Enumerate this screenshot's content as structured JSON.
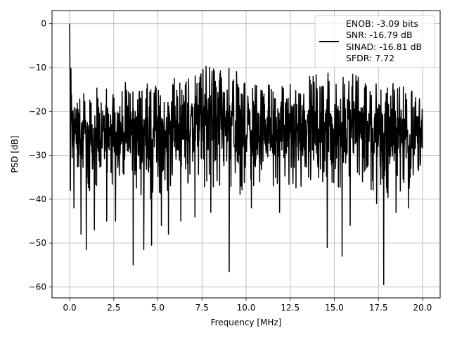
{
  "chart_data": {
    "type": "line",
    "title": "",
    "xlabel": "Frequency [MHz]",
    "ylabel": "PSD [dB]",
    "xlim": [
      -1.0,
      21.0
    ],
    "ylim": [
      -62.5,
      3.0
    ],
    "xticks": [
      0.0,
      2.5,
      5.0,
      7.5,
      10.0,
      12.5,
      15.0,
      17.5,
      20.0
    ],
    "xtick_labels": [
      "0.0",
      "2.5",
      "5.0",
      "7.5",
      "10.0",
      "12.5",
      "15.0",
      "17.5",
      "20.0"
    ],
    "yticks": [
      0,
      -10,
      -20,
      -30,
      -40,
      -50,
      -60
    ],
    "ytick_labels": [
      "0",
      "−10",
      "−20",
      "−30",
      "−40",
      "−50",
      "−60"
    ],
    "grid": true,
    "legend_position": "top-right",
    "series": [
      {
        "name": "",
        "color": "#000000",
        "style": "noisy spectrum, dense oscillation between approx -35 and -15 dB",
        "envelope_top": [
          [
            0.0,
            0.0
          ],
          [
            0.1,
            -13
          ],
          [
            0.5,
            -17
          ],
          [
            1.0,
            -16
          ],
          [
            2.0,
            -17
          ],
          [
            3.0,
            -15
          ],
          [
            4.0,
            -13
          ],
          [
            5.0,
            -13
          ],
          [
            6.0,
            -14
          ],
          [
            7.0,
            -12
          ],
          [
            7.8,
            -9.5
          ],
          [
            9.0,
            -12
          ],
          [
            10.0,
            -13
          ],
          [
            11.0,
            -12
          ],
          [
            12.0,
            -14
          ],
          [
            13.0,
            -12
          ],
          [
            14.0,
            -12
          ],
          [
            15.0,
            -13
          ],
          [
            16.0,
            -11
          ],
          [
            17.0,
            -14
          ],
          [
            18.0,
            -13
          ],
          [
            19.0,
            -14
          ],
          [
            20.0,
            -16
          ]
        ],
        "envelope_bottom": [
          [
            0.0,
            -27
          ],
          [
            0.5,
            -35
          ],
          [
            1.0,
            -36
          ],
          [
            2.0,
            -33
          ],
          [
            3.0,
            -35
          ],
          [
            4.0,
            -37
          ],
          [
            5.0,
            -37
          ],
          [
            6.0,
            -35
          ],
          [
            7.0,
            -35
          ],
          [
            8.0,
            -34
          ],
          [
            9.0,
            -36
          ],
          [
            10.0,
            -36
          ],
          [
            11.0,
            -35
          ],
          [
            12.0,
            -34
          ],
          [
            13.0,
            -35
          ],
          [
            14.0,
            -35
          ],
          [
            15.0,
            -36
          ],
          [
            16.0,
            -35
          ],
          [
            17.0,
            -35
          ],
          [
            18.0,
            -37
          ],
          [
            19.0,
            -35
          ],
          [
            20.0,
            -33
          ]
        ],
        "dips": [
          [
            0.05,
            -38
          ],
          [
            0.25,
            -42
          ],
          [
            0.65,
            -48
          ],
          [
            0.95,
            -51.5
          ],
          [
            1.4,
            -47
          ],
          [
            2.1,
            -45
          ],
          [
            2.6,
            -45
          ],
          [
            3.6,
            -55
          ],
          [
            4.2,
            -51.5
          ],
          [
            4.65,
            -50.5
          ],
          [
            5.2,
            -46
          ],
          [
            5.6,
            -48
          ],
          [
            6.3,
            -45
          ],
          [
            7.1,
            -44
          ],
          [
            8.0,
            -43
          ],
          [
            9.05,
            -56.5
          ],
          [
            10.3,
            -42
          ],
          [
            11.9,
            -43
          ],
          [
            14.6,
            -51
          ],
          [
            15.45,
            -53
          ],
          [
            15.9,
            -46
          ],
          [
            17.4,
            -41
          ],
          [
            17.8,
            -59.5
          ],
          [
            18.5,
            -43
          ],
          [
            19.2,
            -42
          ]
        ]
      }
    ],
    "legend": {
      "lines": [
        "ENOB: -3.09 bits",
        "SNR: -16.79 dB",
        "SINAD: -16.81 dB",
        "SFDR: 7.72"
      ]
    }
  }
}
